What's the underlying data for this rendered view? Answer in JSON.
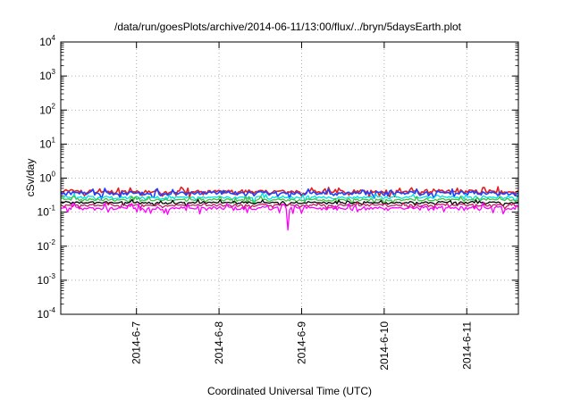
{
  "chart_data": {
    "type": "line",
    "title": "/data/run/goesPlots/archive/2014-06-11/13:00/flux/../bryn/5daysEarth.plot",
    "xlabel": "Coordinated Universal Time (UTC)",
    "ylabel": "cSv/day",
    "yscale": "log",
    "ylim": [
      0.0001,
      10000
    ],
    "xlim": [
      "2014-06-06 02:00",
      "2014-06-11 15:00"
    ],
    "grid": true,
    "legend": "none",
    "y_ticks": [
      {
        "base": "10",
        "exp": "-4",
        "value": 0.0001
      },
      {
        "base": "10",
        "exp": "-3",
        "value": 0.001
      },
      {
        "base": "10",
        "exp": "-2",
        "value": 0.01
      },
      {
        "base": "10",
        "exp": "-1",
        "value": 0.1
      },
      {
        "base": "10",
        "exp": "0",
        "value": 1
      },
      {
        "base": "10",
        "exp": "1",
        "value": 10
      },
      {
        "base": "10",
        "exp": "2",
        "value": 100
      },
      {
        "base": "10",
        "exp": "3",
        "value": 1000
      },
      {
        "base": "10",
        "exp": "4",
        "value": 10000
      }
    ],
    "x_ticks": [
      {
        "label": "2014-6-7",
        "date": "2014-06-07 00:00"
      },
      {
        "label": "2014-6-8",
        "date": "2014-06-08 00:00"
      },
      {
        "label": "2014-6-9",
        "date": "2014-06-09 00:00"
      },
      {
        "label": "2014-6-10",
        "date": "2014-06-10 00:00"
      },
      {
        "label": "2014-6-11",
        "date": "2014-06-11 00:00"
      }
    ],
    "series": [
      {
        "color": "#e02020",
        "level": 0.4,
        "spread": 0.1
      },
      {
        "color": "#2040ff",
        "level": 0.36,
        "spread": 0.1
      },
      {
        "color": "#00e0e0",
        "level": 0.27,
        "spread": 0.08
      },
      {
        "color": "#40c040",
        "level": 0.23,
        "spread": 0.07
      },
      {
        "color": "#000000",
        "level": 0.19,
        "spread": 0.06
      },
      {
        "color": "#c02060",
        "level": 0.16,
        "spread": 0.06
      },
      {
        "color": "#ff00ff",
        "level": 0.13,
        "spread": 0.1
      }
    ],
    "notable": {
      "series_color": "#ff00ff",
      "date": "2014-06-08 20:00",
      "value": 0.03
    }
  }
}
